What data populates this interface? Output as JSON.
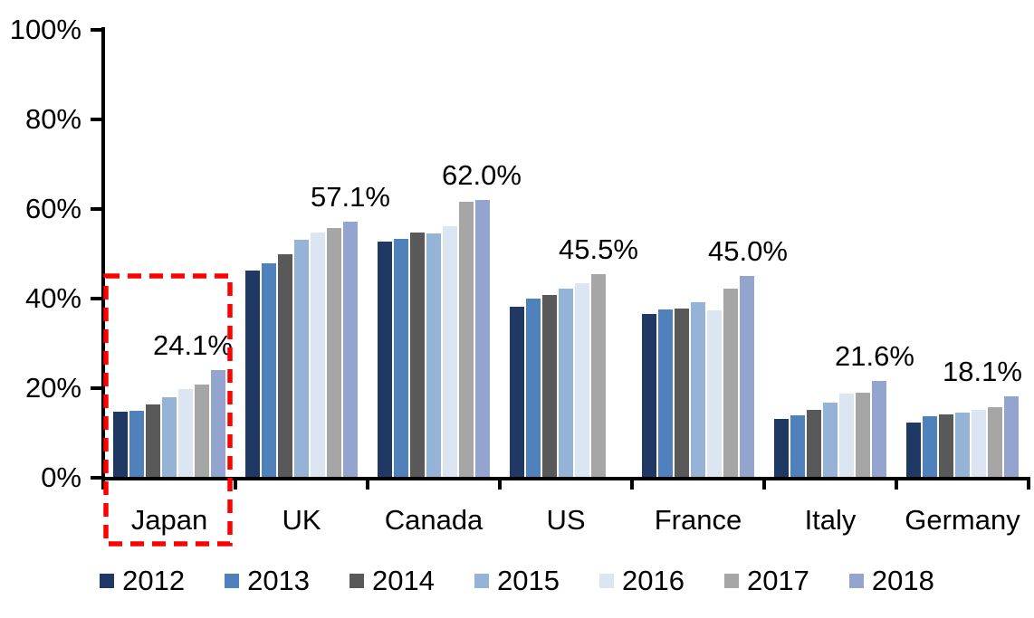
{
  "chart_data": {
    "type": "bar",
    "title": "",
    "xlabel": "",
    "ylabel": "",
    "ylim": [
      0,
      100
    ],
    "grid": false,
    "legend_position": "bottom",
    "y_ticks": [
      {
        "label": "0%",
        "value": 0
      },
      {
        "label": "20%",
        "value": 20
      },
      {
        "label": "40%",
        "value": 40
      },
      {
        "label": "60%",
        "value": 60
      },
      {
        "label": "80%",
        "value": 80
      },
      {
        "label": "100%",
        "value": 100
      }
    ],
    "categories": [
      "Japan",
      "UK",
      "Canada",
      "US",
      "France",
      "Italy",
      "Germany"
    ],
    "series": [
      {
        "name": "2012",
        "color": "#1F3864",
        "values": [
          14.8,
          46.3,
          52.8,
          38.2,
          36.5,
          13.1,
          12.3
        ]
      },
      {
        "name": "2013",
        "color": "#4F81BD",
        "values": [
          15.0,
          47.9,
          53.3,
          40.1,
          37.6,
          13.9,
          13.7
        ]
      },
      {
        "name": "2014",
        "color": "#595959",
        "values": [
          16.4,
          50.0,
          54.8,
          40.9,
          37.7,
          15.2,
          14.1
        ]
      },
      {
        "name": "2015",
        "color": "#95B3D7",
        "values": [
          17.9,
          53.1,
          54.6,
          42.2,
          39.2,
          16.7,
          14.5
        ]
      },
      {
        "name": "2016",
        "color": "#DCE6F2",
        "values": [
          19.8,
          54.7,
          56.2,
          43.5,
          37.3,
          18.7,
          15.2
        ]
      },
      {
        "name": "2017",
        "color": "#A6A6A6",
        "values": [
          20.8,
          55.7,
          61.6,
          45.5,
          42.2,
          19.0,
          15.7
        ]
      },
      {
        "name": "2018",
        "color": "#93A5CF",
        "values": [
          24.1,
          57.1,
          62.0,
          null,
          45.0,
          21.6,
          18.1
        ]
      }
    ],
    "data_labels": [
      "24.1%",
      "57.1%",
      "62.0%",
      "45.5%",
      "45.0%",
      "21.6%",
      "18.1%"
    ],
    "annotations": {
      "highlight_box": {
        "category": "Japan",
        "style": "dashed-rectangle",
        "color": "#FF0000"
      }
    },
    "axis_color": "#000000",
    "text_color": "#000000"
  }
}
